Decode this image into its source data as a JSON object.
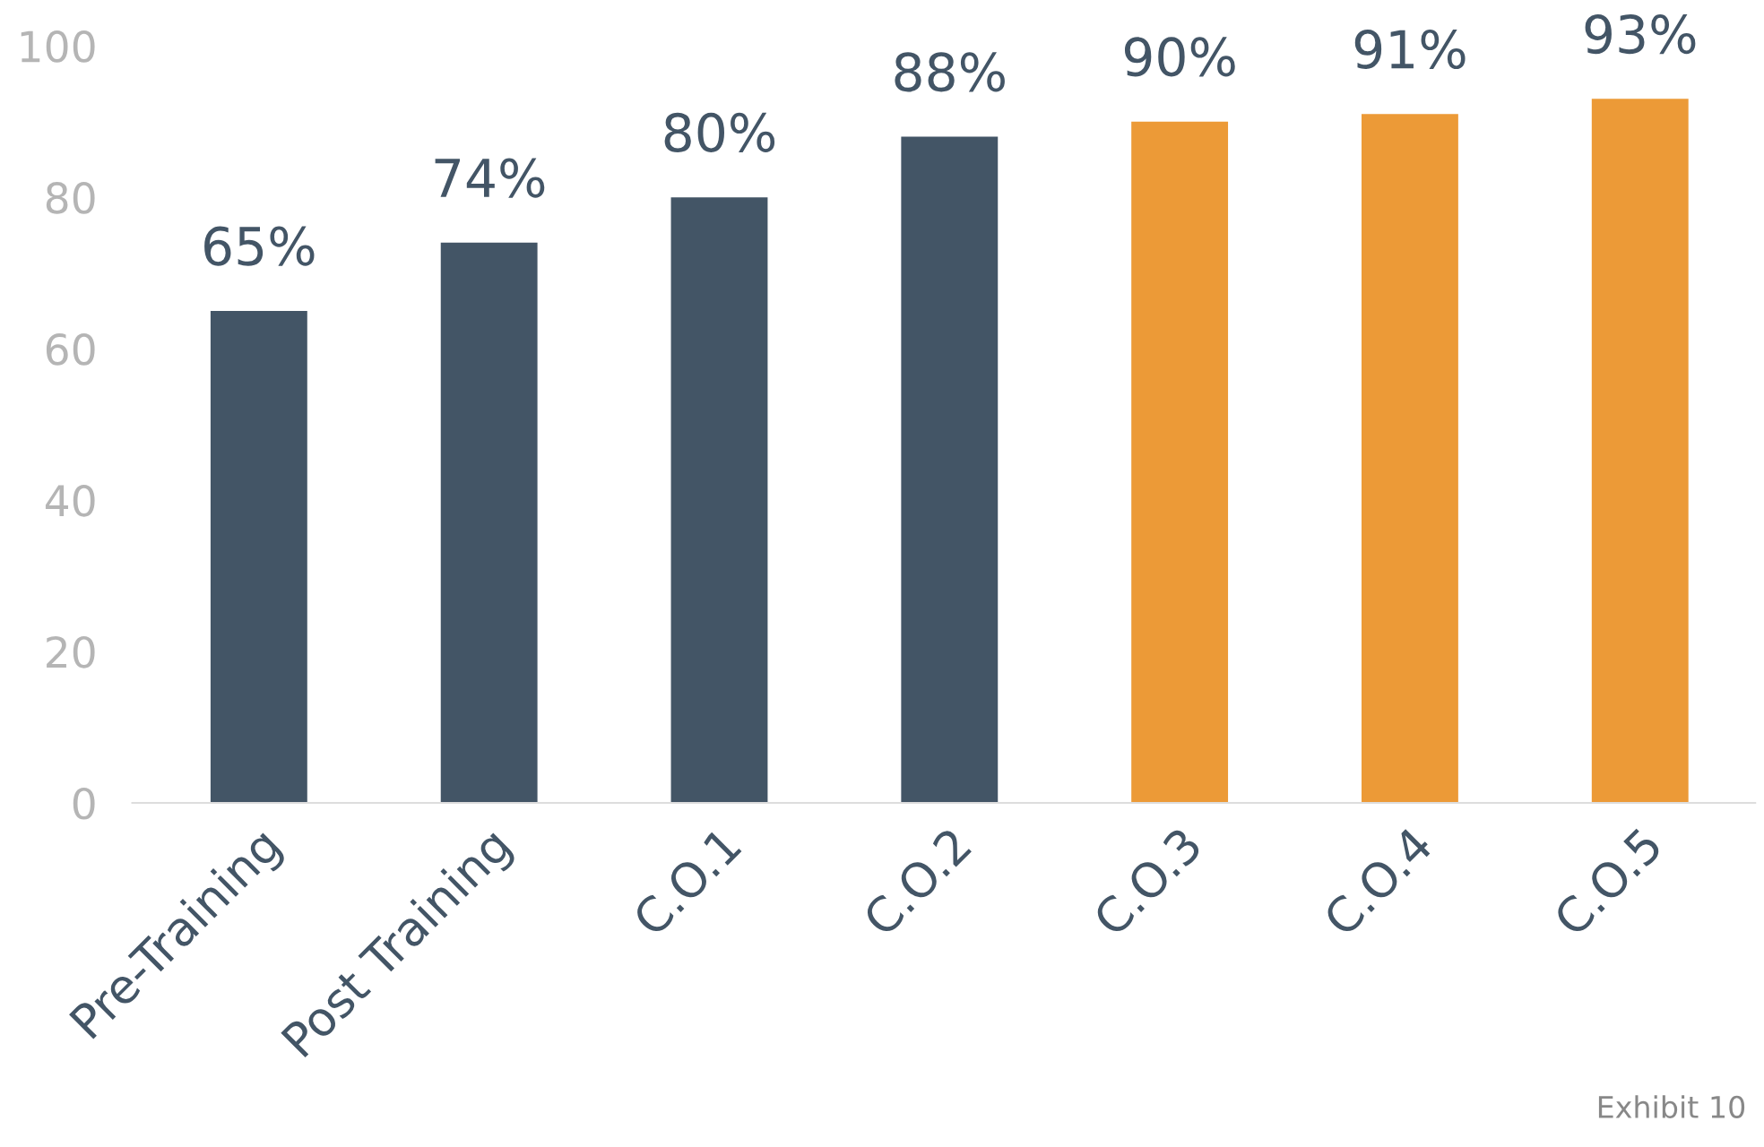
{
  "chart_data": {
    "type": "bar",
    "categories": [
      "Pre-Training",
      "Post Training",
      "C.O.1",
      "C.O.2",
      "C.O.3",
      "C.O.4",
      "C.O.5"
    ],
    "values": [
      65,
      74,
      80,
      88,
      90,
      91,
      93
    ],
    "colors": [
      "#435566",
      "#435566",
      "#435566",
      "#435566",
      "#ec9a37",
      "#ec9a37",
      "#ec9a37"
    ],
    "value_labels": [
      "65%",
      "74%",
      "80%",
      "88%",
      "90%",
      "91%",
      "93%"
    ],
    "ylim": [
      0,
      100
    ],
    "yticks": [
      0,
      20,
      40,
      60,
      80,
      100
    ],
    "grid": false,
    "legend": false,
    "annotations": [
      "Exhibit 10"
    ]
  }
}
